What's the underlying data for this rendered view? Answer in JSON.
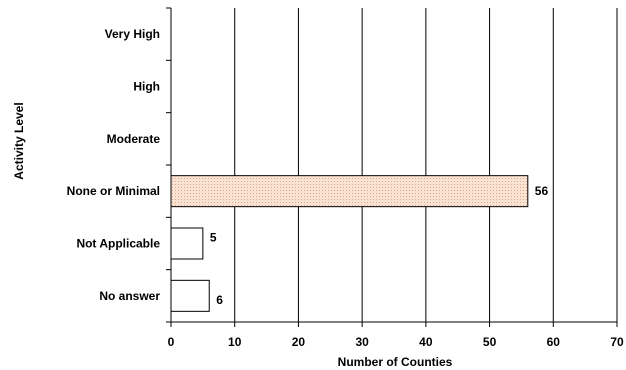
{
  "chart_data": {
    "type": "bar",
    "orientation": "horizontal",
    "title": "",
    "xlabel": "Number of Counties",
    "ylabel": "Activity Level",
    "categories": [
      "Very High",
      "High",
      "Moderate",
      "None or Minimal",
      "Not Applicable",
      "No answer"
    ],
    "values": [
      null,
      null,
      null,
      56,
      5,
      6
    ],
    "data_labels": [
      "",
      "",
      "",
      "56",
      "5",
      "6"
    ],
    "xlim": [
      0,
      70
    ],
    "xticks": [
      "0",
      "10",
      "20",
      "30",
      "40",
      "50",
      "60",
      "70"
    ],
    "grid": "vertical",
    "highlight_category": "None or Minimal",
    "colors": {
      "highlight_fill": "#fbe3d4",
      "highlight_dots": "#d9a88a",
      "bar_fill": "#ffffff",
      "bar_stroke": "#000000",
      "grid": "#000000"
    }
  }
}
